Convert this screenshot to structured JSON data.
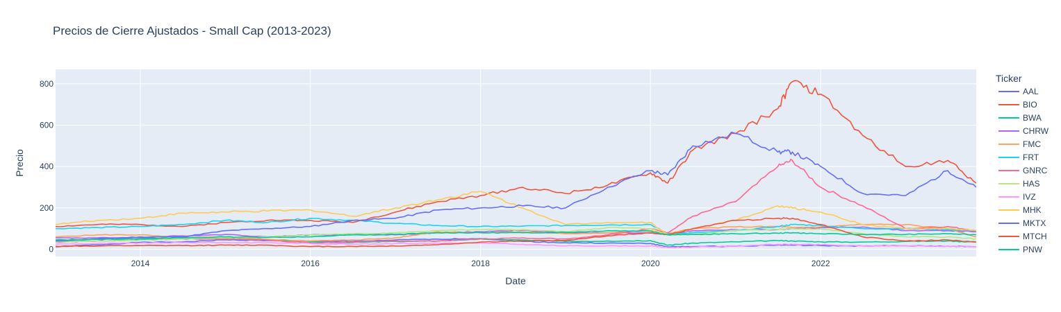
{
  "chart_data": {
    "type": "line",
    "title": "Precios de Cierre Ajustados - Small Cap (2013-2023)",
    "xlabel": "Date",
    "ylabel": "Precio",
    "legend_title": "Ticker",
    "legend_position": "right",
    "grid": true,
    "xlim": [
      "2013-01-02",
      "2023-10-31"
    ],
    "ylim": [
      -35,
      870
    ],
    "x_ticks": [
      "2014",
      "2016",
      "2018",
      "2020",
      "2022"
    ],
    "y_ticks": [
      0,
      200,
      400,
      600,
      800
    ],
    "x": [
      "2013-01-01",
      "2013-07-01",
      "2014-01-01",
      "2014-07-01",
      "2015-01-01",
      "2015-07-01",
      "2016-01-01",
      "2016-07-01",
      "2017-01-01",
      "2017-07-01",
      "2018-01-01",
      "2018-07-01",
      "2019-01-01",
      "2019-07-01",
      "2020-01-01",
      "2020-03-15",
      "2020-07-01",
      "2021-01-01",
      "2021-07-01",
      "2021-09-01",
      "2022-01-01",
      "2022-07-01",
      "2023-01-01",
      "2023-07-01",
      "2023-10-31"
    ],
    "series": [
      {
        "name": "AAL",
        "color": "#636efa",
        "values": [
          12,
          22,
          34,
          35,
          46,
          42,
          40,
          38,
          45,
          49,
          52,
          38,
          32,
          30,
          28,
          12,
          13,
          15,
          21,
          20,
          18,
          16,
          17,
          15,
          12
        ]
      },
      {
        "name": "BIO",
        "color": "#ef553b",
        "values": [
          110,
          120,
          120,
          110,
          130,
          140,
          140,
          130,
          180,
          230,
          260,
          300,
          270,
          310,
          370,
          320,
          480,
          560,
          680,
          810,
          750,
          550,
          400,
          430,
          320
        ]
      },
      {
        "name": "BWA",
        "color": "#00cc96",
        "values": [
          40,
          48,
          52,
          55,
          52,
          45,
          35,
          33,
          38,
          40,
          50,
          45,
          38,
          40,
          42,
          20,
          30,
          36,
          42,
          40,
          36,
          35,
          38,
          40,
          35
        ]
      },
      {
        "name": "CHRW",
        "color": "#ab63fa",
        "values": [
          55,
          55,
          57,
          65,
          72,
          60,
          70,
          70,
          70,
          80,
          85,
          92,
          80,
          80,
          78,
          72,
          90,
          95,
          95,
          100,
          105,
          108,
          90,
          90,
          85
        ]
      },
      {
        "name": "FMC",
        "color": "#ffa15a",
        "values": [
          60,
          70,
          70,
          55,
          60,
          48,
          40,
          45,
          55,
          85,
          80,
          85,
          75,
          80,
          90,
          75,
          100,
          108,
          110,
          105,
          108,
          120,
          120,
          100,
          60
        ]
      },
      {
        "name": "FRT",
        "color": "#19d3f3",
        "values": [
          100,
          105,
          110,
          120,
          140,
          130,
          150,
          140,
          125,
          115,
          110,
          112,
          115,
          118,
          120,
          75,
          80,
          90,
          110,
          120,
          115,
          100,
          100,
          95,
          90
        ]
      },
      {
        "name": "GNRC",
        "color": "#ff6692",
        "values": [
          35,
          40,
          45,
          50,
          50,
          45,
          30,
          35,
          40,
          40,
          50,
          55,
          50,
          70,
          100,
          80,
          160,
          230,
          400,
          430,
          300,
          210,
          100,
          110,
          90
        ]
      },
      {
        "name": "HAS",
        "color": "#b6e880",
        "values": [
          35,
          40,
          45,
          50,
          55,
          60,
          70,
          75,
          80,
          90,
          95,
          95,
          85,
          105,
          100,
          70,
          72,
          92,
          96,
          100,
          98,
          75,
          60,
          60,
          50
        ]
      },
      {
        "name": "IVZ",
        "color": "#ff97ff",
        "values": [
          25,
          28,
          30,
          32,
          33,
          32,
          28,
          25,
          28,
          30,
          30,
          24,
          16,
          17,
          16,
          8,
          10,
          16,
          24,
          24,
          22,
          16,
          17,
          15,
          13
        ]
      },
      {
        "name": "MHK",
        "color": "#fecb52",
        "values": [
          120,
          140,
          150,
          175,
          180,
          185,
          190,
          160,
          200,
          240,
          280,
          200,
          120,
          130,
          130,
          70,
          100,
          140,
          210,
          200,
          180,
          120,
          100,
          100,
          90
        ]
      },
      {
        "name": "MKTX",
        "color": "#636efa",
        "values": [
          40,
          50,
          60,
          60,
          90,
          100,
          110,
          140,
          150,
          190,
          200,
          210,
          200,
          300,
          380,
          360,
          500,
          560,
          470,
          470,
          400,
          270,
          260,
          380,
          300
        ]
      },
      {
        "name": "MTCH",
        "color": "#ef553b",
        "values": [
          15,
          16,
          18,
          18,
          20,
          20,
          13,
          14,
          16,
          22,
          35,
          40,
          43,
          65,
          80,
          70,
          100,
          140,
          150,
          150,
          120,
          60,
          40,
          45,
          35
        ]
      },
      {
        "name": "PNW",
        "color": "#00cc96",
        "values": [
          45,
          48,
          50,
          55,
          60,
          58,
          60,
          70,
          72,
          80,
          80,
          80,
          82,
          90,
          88,
          70,
          72,
          75,
          78,
          80,
          75,
          72,
          72,
          75,
          70
        ]
      }
    ]
  }
}
